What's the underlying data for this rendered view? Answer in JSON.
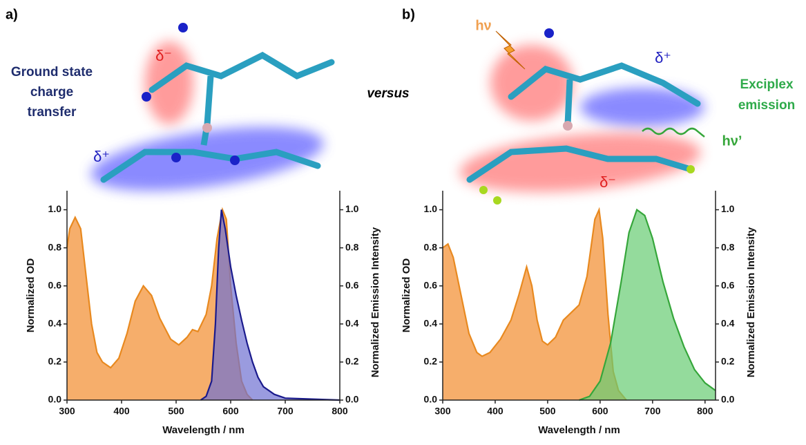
{
  "panel_labels": [
    "a)",
    "b)"
  ],
  "annotations": {
    "a_delta_minus": "δ⁻",
    "a_delta_plus": "δ⁺",
    "a_caption": [
      "Ground state",
      "charge",
      "transfer"
    ],
    "versus": "versus",
    "b_hv": "hν",
    "b_delta_plus": "δ⁺",
    "b_delta_minus": "δ⁻",
    "b_caption": [
      "Exciplex",
      "emission"
    ],
    "b_hv2": "hν’"
  },
  "chart_data": [
    {
      "type": "area",
      "xlabel": "Wavelength / nm",
      "ylabel": "Normalized OD",
      "y2label": "Normalized Emission Intensity",
      "xlim": [
        300,
        800
      ],
      "xticks": [
        300,
        400,
        500,
        600,
        700,
        800
      ],
      "ylim": [
        0,
        1.1
      ],
      "yticks": [
        {
          "value": 0,
          "label": "0.0"
        },
        0.2,
        0.4,
        0.6,
        0.8,
        {
          "value": 1,
          "label": "1.0"
        }
      ],
      "y2lim": [
        0,
        1.1
      ],
      "y2ticks": [
        {
          "value": 0,
          "label": "0.0"
        },
        0.2,
        0.4,
        0.6,
        0.8,
        {
          "value": 1,
          "label": "1.0"
        }
      ],
      "series": [
        {
          "color": "#e8891f",
          "fill": "#f6aa63",
          "x": [
            300,
            305,
            315,
            325,
            335,
            345,
            355,
            365,
            380,
            395,
            410,
            425,
            440,
            455,
            470,
            490,
            505,
            520,
            530,
            540,
            555,
            565,
            575,
            585,
            592,
            600,
            610,
            620,
            630,
            640
          ],
          "values": [
            0.8,
            0.9,
            0.96,
            0.9,
            0.65,
            0.4,
            0.25,
            0.2,
            0.17,
            0.22,
            0.35,
            0.52,
            0.6,
            0.55,
            0.43,
            0.32,
            0.29,
            0.33,
            0.37,
            0.36,
            0.45,
            0.6,
            0.85,
            1.0,
            0.95,
            0.6,
            0.3,
            0.1,
            0.03,
            0.0
          ]
        },
        {
          "color": "#1a1a8c",
          "fill": "#6f70d2",
          "axis": "y2",
          "x": [
            545,
            555,
            565,
            572,
            578,
            583,
            590,
            600,
            610,
            620,
            630,
            640,
            650,
            660,
            680,
            700,
            750,
            800
          ],
          "values": [
            0.0,
            0.02,
            0.1,
            0.4,
            0.8,
            1.0,
            0.9,
            0.7,
            0.55,
            0.42,
            0.3,
            0.2,
            0.12,
            0.07,
            0.03,
            0.01,
            0.005,
            0
          ]
        }
      ]
    },
    {
      "type": "area",
      "xlabel": "Wavelength / nm",
      "ylabel": "Normalized OD",
      "y2label": "Normalized Emission Intensity",
      "xlim": [
        300,
        820
      ],
      "xticks": [
        300,
        400,
        500,
        600,
        700,
        800
      ],
      "ylim": [
        0,
        1.1
      ],
      "yticks": [
        {
          "value": 0,
          "label": "0.0"
        },
        0.2,
        0.4,
        0.6,
        0.8,
        {
          "value": 1,
          "label": "1.0"
        }
      ],
      "y2lim": [
        0,
        1.1
      ],
      "y2ticks": [
        {
          "value": 0,
          "label": "0.0"
        },
        0.2,
        0.4,
        0.6,
        0.8,
        {
          "value": 1,
          "label": "1.0"
        }
      ],
      "series": [
        {
          "color": "#e8891f",
          "fill": "#f6aa63",
          "x": [
            300,
            310,
            320,
            335,
            350,
            365,
            375,
            390,
            410,
            430,
            445,
            460,
            470,
            480,
            490,
            500,
            515,
            530,
            545,
            560,
            575,
            590,
            598,
            605,
            615,
            625,
            635,
            650
          ],
          "values": [
            0.8,
            0.82,
            0.75,
            0.55,
            0.35,
            0.25,
            0.23,
            0.25,
            0.32,
            0.42,
            0.55,
            0.7,
            0.6,
            0.42,
            0.31,
            0.29,
            0.33,
            0.42,
            0.46,
            0.5,
            0.65,
            0.95,
            1.0,
            0.85,
            0.45,
            0.15,
            0.05,
            0
          ]
        },
        {
          "color": "#35a63a",
          "fill": "#66cc72",
          "axis": "y2",
          "x": [
            560,
            580,
            600,
            620,
            640,
            655,
            670,
            685,
            700,
            720,
            740,
            760,
            780,
            800,
            820
          ],
          "values": [
            0,
            0.02,
            0.1,
            0.3,
            0.62,
            0.88,
            1.0,
            0.97,
            0.85,
            0.62,
            0.43,
            0.28,
            0.16,
            0.09,
            0.05
          ]
        }
      ]
    }
  ]
}
